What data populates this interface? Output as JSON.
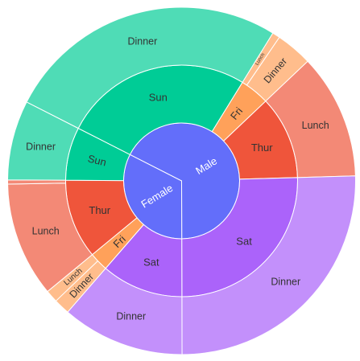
{
  "chart_data": {
    "type": "sunburst",
    "title": "",
    "root": [
      {
        "id": "male",
        "label": "Male",
        "value": 3256.82,
        "color": "#636efa",
        "children": [
          {
            "id": "male-sun",
            "label": "Sun",
            "value": 1269.46,
            "color": "#00cc96",
            "children": [
              {
                "id": "male-sun-dinner",
                "label": "Dinner",
                "value": 1269.46,
                "color": "#4fdcb6"
              }
            ]
          },
          {
            "id": "male-fri",
            "label": "Fri",
            "value": 198.57,
            "color": "#ffa15a",
            "children": [
              {
                "id": "male-fri-lunch",
                "label": "Lunch",
                "value": 34.16,
                "color": "#ffbd8c"
              },
              {
                "id": "male-fri-dinner",
                "label": "Dinner",
                "value": 164.41,
                "color": "#ffbd8c"
              }
            ]
          },
          {
            "id": "male-thur",
            "label": "Thur",
            "value": 561.44,
            "color": "#ef553b",
            "children": [
              {
                "id": "male-thur-lunch",
                "label": "Lunch",
                "value": 561.44,
                "color": "#f38976"
              }
            ]
          },
          {
            "id": "male-sat",
            "label": "Sat",
            "value": 1227.35,
            "color": "#ab63fa",
            "children": [
              {
                "id": "male-sat-dinner",
                "label": "Dinner",
                "value": 1227.35,
                "color": "#c390fb"
              }
            ]
          }
        ]
      },
      {
        "id": "female",
        "label": "Female",
        "value": 1570.95,
        "color": "#636efa",
        "children": [
          {
            "id": "female-sat",
            "label": "Sat",
            "value": 551.05,
            "color": "#ab63fa",
            "children": [
              {
                "id": "female-sat-dinner",
                "label": "Dinner",
                "value": 551.05,
                "color": "#c390fb"
              }
            ]
          },
          {
            "id": "female-fri",
            "label": "Fri",
            "value": 127.31,
            "color": "#ffa15a",
            "children": [
              {
                "id": "female-fri-dinner",
                "label": "Dinner",
                "value": 71.34,
                "color": "#ffbd8c"
              },
              {
                "id": "female-fri-lunch",
                "label": "Lunch",
                "value": 55.97,
                "color": "#ffbd8c"
              }
            ]
          },
          {
            "id": "female-thur",
            "label": "Thur",
            "value": 534.89,
            "color": "#ef553b",
            "children": [
              {
                "id": "female-thur-lunch",
                "label": "Lunch",
                "value": 516.11,
                "color": "#f38976"
              },
              {
                "id": "female-thur-dinner",
                "label": "",
                "value": 18.78,
                "color": "#f38976"
              }
            ]
          },
          {
            "id": "female-sun",
            "label": "Sun",
            "value": 357.7,
            "color": "#00cc96",
            "children": [
              {
                "id": "female-sun-dinner",
                "label": "Dinner",
                "value": 357.7,
                "color": "#4fdcb6"
              }
            ]
          }
        ]
      }
    ]
  }
}
